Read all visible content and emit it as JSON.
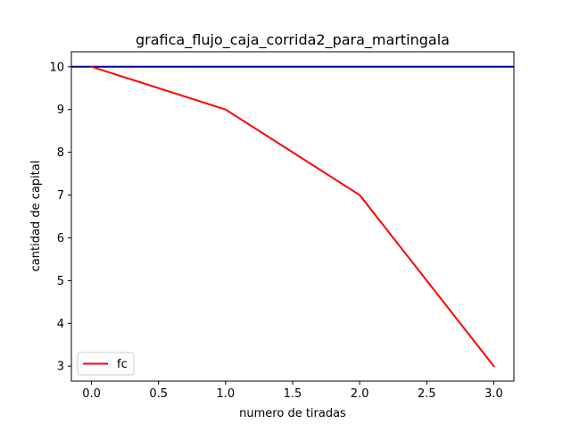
{
  "chart_data": {
    "type": "line",
    "title": "grafica_flujo_caja_corrida2_para_martingala",
    "xlabel": "numero de tiradas",
    "ylabel": "cantidad de capital",
    "xlim": [
      -0.15,
      3.15
    ],
    "ylim": [
      2.65,
      10.35
    ],
    "xticks": [
      0.0,
      0.5,
      1.0,
      1.5,
      2.0,
      2.5,
      3.0
    ],
    "xtick_labels": [
      "0.0",
      "0.5",
      "1.0",
      "1.5",
      "2.0",
      "2.5",
      "3.0"
    ],
    "yticks": [
      3,
      4,
      5,
      6,
      7,
      8,
      9,
      10
    ],
    "ytick_labels": [
      "3",
      "4",
      "5",
      "6",
      "7",
      "8",
      "9",
      "10"
    ],
    "grid": false,
    "legend_position": "lower-left",
    "series": [
      {
        "name": "fc",
        "color": "#ff0000",
        "x": [
          0,
          1,
          2,
          3
        ],
        "y": [
          10,
          9,
          7,
          3
        ]
      }
    ],
    "hlines": [
      {
        "y": 10,
        "color": "#00008b"
      }
    ]
  }
}
